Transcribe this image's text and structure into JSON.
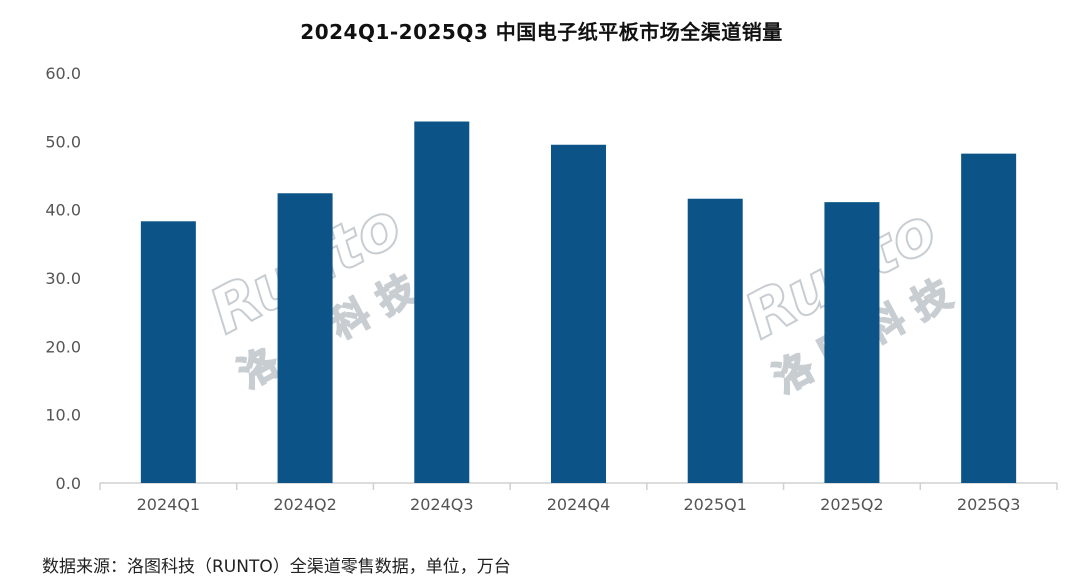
{
  "title": "2024Q1-2025Q3 中国电子纸平板市场全渠道销量",
  "source_note": "数据来源：洛图科技（RUNTO）全渠道零售数据，单位，万台",
  "watermark": {
    "latin": "Runto",
    "chinese": "洛图科技"
  },
  "chart_data": {
    "type": "bar",
    "title": "2024Q1-2025Q3 中国电子纸平板市场全渠道销量",
    "categories": [
      "2024Q1",
      "2024Q2",
      "2024Q3",
      "2024Q4",
      "2025Q1",
      "2025Q2",
      "2025Q3"
    ],
    "values": [
      38.3,
      42.4,
      52.9,
      49.5,
      41.6,
      41.1,
      48.2
    ],
    "ylim": [
      0,
      60
    ],
    "yticks": [
      "0.0",
      "10.0",
      "20.0",
      "30.0",
      "40.0",
      "50.0",
      "60.0"
    ],
    "ytick_values": [
      0,
      10,
      20,
      30,
      40,
      50,
      60
    ],
    "xlabel": "",
    "ylabel": "",
    "grid": false,
    "bar_color": "#0c5487",
    "axis_color": "#d0d0d0"
  }
}
